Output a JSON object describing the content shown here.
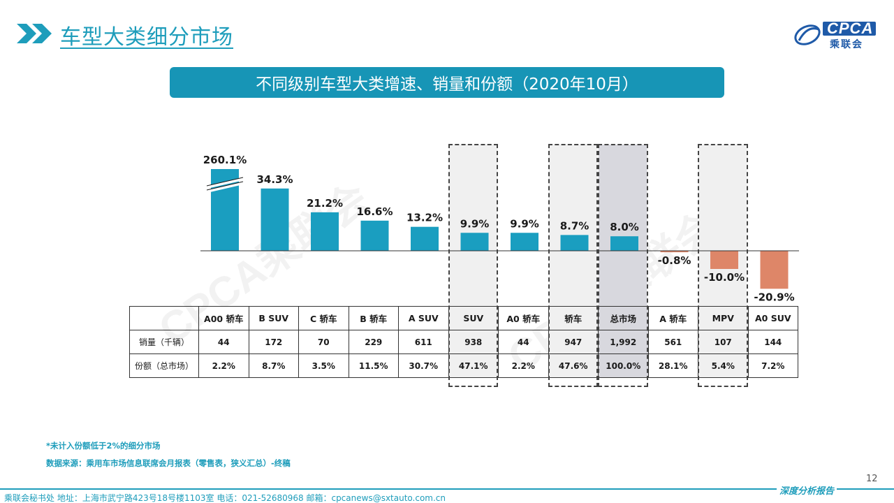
{
  "header": {
    "title": "车型大类细分市场",
    "logo_text": "CPCA",
    "logo_sub": "乘联会"
  },
  "banner": "不同级别车型大类增速、销量和份额（2020年10月）",
  "watermark": "CPCA乘联会",
  "chart_data": {
    "type": "bar",
    "categories": [
      "A00 轿车",
      "B SUV",
      "C 轿车",
      "B 轿车",
      "A SUV",
      "SUV",
      "A0 轿车",
      "轿车",
      "总市场",
      "A 轿车",
      "MPV",
      "A0 SUV"
    ],
    "values": [
      260.1,
      34.3,
      21.2,
      16.6,
      13.2,
      9.9,
      9.9,
      8.7,
      8.0,
      -0.8,
      -10.0,
      -20.9
    ],
    "value_labels": [
      "260.1%",
      "34.3%",
      "21.2%",
      "16.6%",
      "13.2%",
      "9.9%",
      "9.9%",
      "8.7%",
      "8.0%",
      "-0.8%",
      "-10.0%",
      "-20.9%"
    ],
    "axis_break": {
      "category": "A00 轿车",
      "shown_as": 45
    },
    "ylabel": "",
    "colors": {
      "positive": "#1a9ec0",
      "negative": "#de8668"
    },
    "highlighted": [
      "SUV",
      "轿车",
      "总市场",
      "MPV"
    ]
  },
  "table": {
    "rows": [
      {
        "label": "销量（千辆）",
        "values": [
          "44",
          "172",
          "70",
          "229",
          "611",
          "938",
          "44",
          "947",
          "1,992",
          "561",
          "107",
          "144"
        ]
      },
      {
        "label": "份额（总市场）",
        "values": [
          "2.2%",
          "8.7%",
          "3.5%",
          "11.5%",
          "30.7%",
          "47.1%",
          "2.2%",
          "47.6%",
          "100.0%",
          "28.1%",
          "5.4%",
          "7.2%"
        ]
      }
    ]
  },
  "notes": {
    "note1": "*未计入份额低于2%的细分市场",
    "note2": "数据来源：乘用车市场信息联席会月报表（零售表，狭义汇总）-终稿"
  },
  "footer": {
    "left": "乘联会秘书处   地址：上海市武宁路423号18号楼1103室   电话：021-52680968   邮箱：cpcanews@sxtauto.com.cn",
    "right": "深度分析报告",
    "page": "12"
  }
}
